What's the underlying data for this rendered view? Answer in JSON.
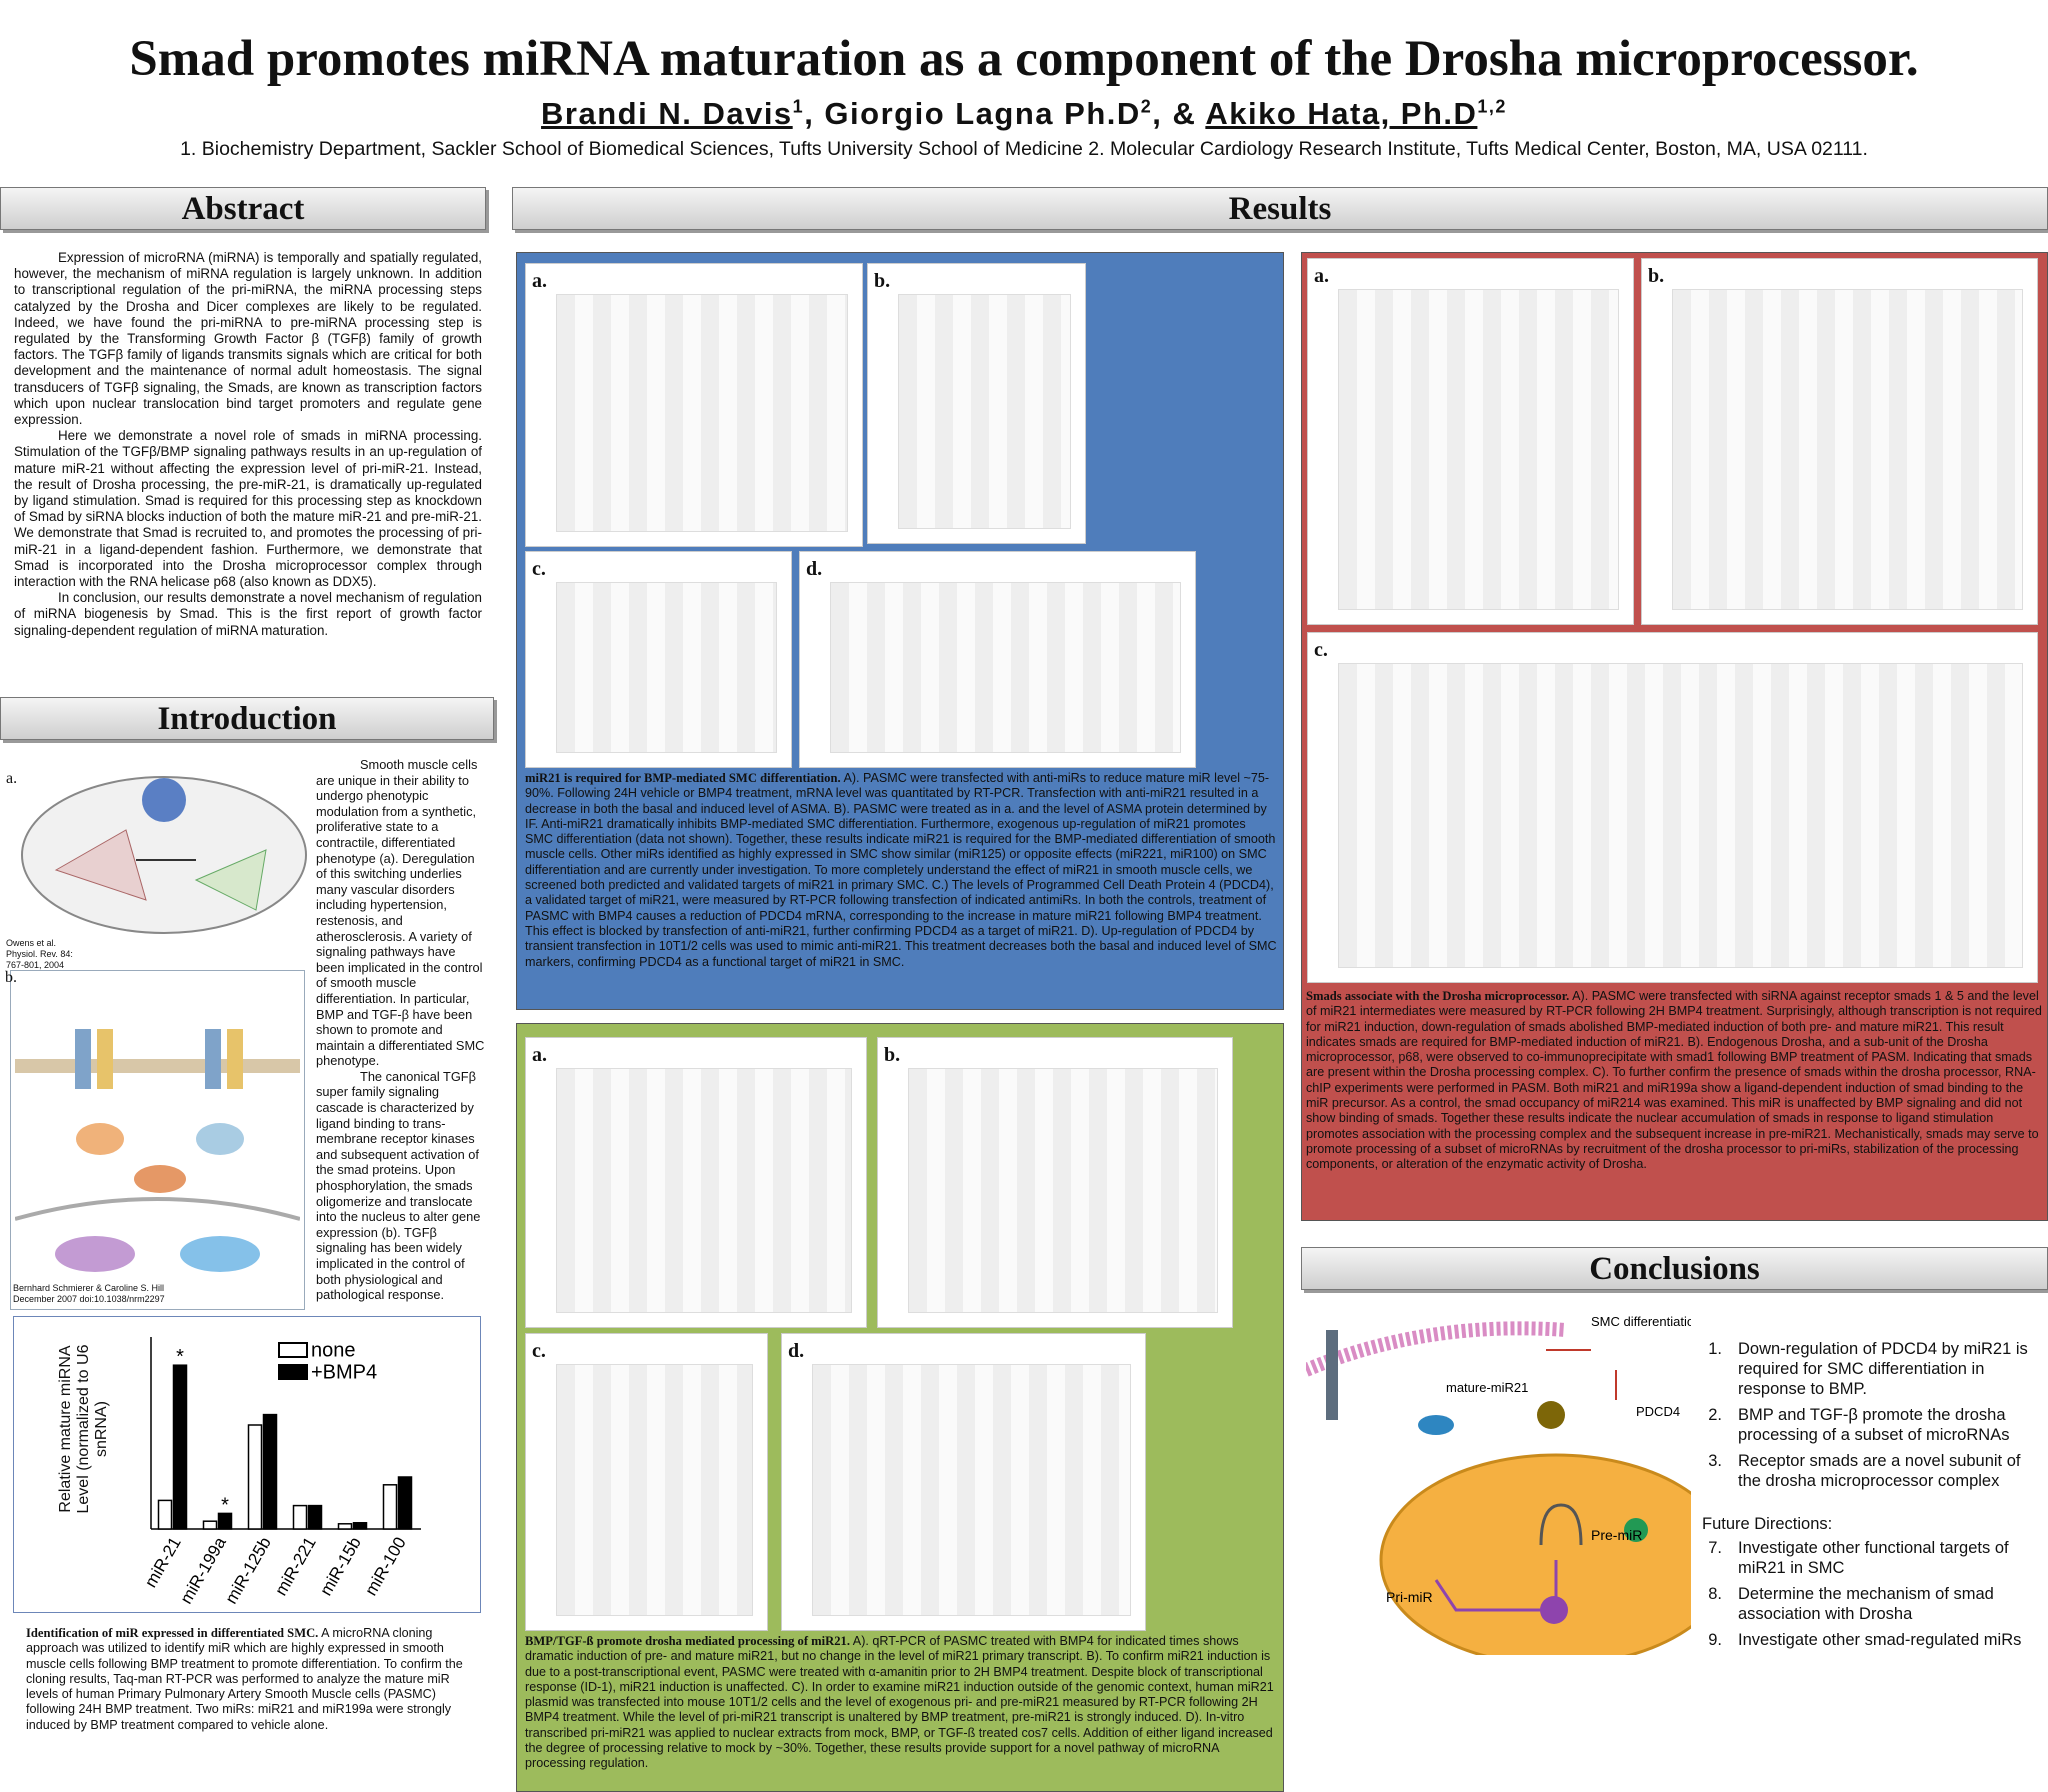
{
  "header": {
    "title": "Smad promotes miRNA maturation as a component of the Drosha microprocessor.",
    "authors": [
      {
        "name": "Brandi N. Davis",
        "sup": "1"
      },
      {
        "name": "Giorgio Lagna Ph.D",
        "sup": "2"
      },
      {
        "name": "Akiko Hata, Ph.D",
        "sup": "1,2"
      }
    ],
    "separators": [
      ", ",
      ", & "
    ],
    "affiliations": "1. Biochemistry Department, Sackler School of Biomedical Sciences, Tufts University School of Medicine  2. Molecular Cardiology Research Institute, Tufts Medical Center, Boston, MA, USA 02111."
  },
  "abstract": {
    "heading": "Abstract",
    "paragraphs": [
      "Expression of microRNA (miRNA) is temporally and spatially regulated, however, the mechanism of miRNA regulation is largely unknown.  In addition to transcriptional regulation of the pri-miRNA, the miRNA processing steps catalyzed by the Drosha and Dicer complexes are likely to be regulated.  Indeed, we have found the pri-miRNA to pre-miRNA processing step is regulated by the Transforming Growth Factor β (TGFβ) family of growth factors.  The TGFβ family of ligands transmits signals which are critical for both development and the maintenance of normal adult homeostasis.  The signal transducers of TGFβ signaling, the Smads, are known as transcription factors which upon nuclear translocation bind target promoters and regulate gene expression.",
      "Here we demonstrate a novel role of smads in miRNA processing. Stimulation of the TGFβ/BMP signaling pathways results in an up-regulation of mature miR-21 without affecting the expression level of pri-miR-21.  Instead, the result of Drosha processing, the pre-miR-21, is dramatically up-regulated by ligand stimulation.  Smad is required for this processing step as knockdown of Smad by siRNA blocks induction of both the mature miR-21 and pre-miR-21.  We demonstrate that Smad is recruited to, and promotes the processing of pri-miR-21 in a ligand-dependent fashion.  Furthermore, we demonstrate that Smad is incorporated into the Drosha microprocessor complex through interaction with the RNA helicase p68 (also known as DDX5).",
      "In conclusion, our results demonstrate a novel mechanism of regulation of miRNA biogenesis by Smad. This is the first report of growth factor signaling-dependent regulation of miRNA maturation."
    ]
  },
  "introduction": {
    "heading": "Introduction",
    "figure_a": {
      "label": "a.",
      "credit": "Owens et al. Physiol. Rev. 84: 767-801, 2004"
    },
    "figure_b": {
      "label": "b.",
      "credit": "Bernhard Schmierer & Caroline S. Hill December 2007 doi:10.1038/nrm2297"
    },
    "paragraphs": [
      "Smooth muscle cells are unique in their ability to undergo phenotypic modulation from a synthetic, proliferative state to a contractile, differentiated phenotype (a).  Deregulation of this switching underlies many vascular disorders including hypertension, restenosis, and atherosclerosis.  A variety of signaling pathways have been implicated in the control of smooth muscle differentiation.  In particular, BMP and TGF-β have been shown to promote and maintain a differentiated SMC phenotype.",
      "The canonical TGFβ super family signaling cascade is characterized by ligand binding to trans-membrane receptor kinases and subsequent activation of the smad proteins.  Upon phosphorylation, the smads oligomerize and translocate into the nucleus to alter gene expression (b).  TGFβ signaling has been widely implicated in the control of both physiological and pathological response."
    ],
    "caption_lead": "Identification of miR expressed in differentiated SMC.",
    "caption": "A microRNA cloning approach was utilized to identify miR which are highly expressed in smooth muscle cells following BMP treatment to promote differentiation.  To confirm the cloning results, Taq-man RT-PCR was performed to analyze the mature miR levels of human Primary Pulmonary Artery Smooth Muscle cells (PASMC) following 24H BMP treatment.  Two miRs: miR21 and miR199a were strongly induced by BMP treatment compared to vehicle alone."
  },
  "chart_data": {
    "type": "bar",
    "ylabel": "Relative mature miRNA Level (normalized to U6 snRNA)",
    "categories": [
      "miR-21",
      "miR-199a",
      "miR-125b",
      "miR-221",
      "miR-15b",
      "miR-100"
    ],
    "series": [
      {
        "name": "none",
        "color": "#ffffff",
        "values": [
          5.5,
          1.5,
          20,
          4.5,
          1,
          8.5
        ]
      },
      {
        "name": "+BMP4",
        "color": "#000000",
        "values": [
          31.5,
          3,
          22,
          4.5,
          1.2,
          10
        ]
      }
    ],
    "ylim": [
      0,
      35
    ],
    "legend": "upper right",
    "annotations": [
      {
        "text": "*",
        "category": "miR-21",
        "series": "+BMP4"
      },
      {
        "text": "*",
        "category": "miR-199a",
        "series": "+BMP4"
      }
    ]
  },
  "results": {
    "heading": "Results",
    "blue": {
      "figures": [
        "a.",
        "b.",
        "c.",
        "d."
      ],
      "caption_lead": "miR21 is required for BMP-mediated SMC differentiation.",
      "caption": "A). PASMC were transfected with anti-miRs to reduce mature miR level  ~75-90%.  Following 24H vehicle or BMP4 treatment, mRNA level was quantitated by RT-PCR.  Transfection with anti-miR21 resulted in a decrease in both the basal and induced level of ASMA.  B).  PASMC were treated as in a. and the level of ASMA protein determined by IF.  Anti-miR21 dramatically inhibits BMP-mediated SMC differentiation.  Furthermore, exogenous up-regulation of miR21 promotes SMC differentiation (data not shown).  Together, these results indicate miR21 is required for the BMP-mediated differentiation of smooth muscle cells. Other miRs identified as highly expressed in SMC show similar (miR125) or opposite effects (miR221, miR100) on SMC differentiation and are currently under investigation.  To more completely understand the effect of miR21 in smooth muscle cells, we screened both predicted and validated targets of miR21 in primary SMC.  C.)  The levels of Programmed Cell Death Protein 4 (PDCD4), a validated target of miR21,  were measured by RT-PCR following transfection of indicated antimiRs.  In both the controls, treatment of PASMC with BMP4 causes a reduction of PDCD4 mRNA, corresponding to the increase in mature miR21 following BMP4 treatment.  This effect is blocked by transfection of anti-miR21, further confirming PDCD4 as a target of miR21.  D).  Up-regulation of PDCD4 by transient transfection in 10T1/2 cells was used to mimic anti-miR21.  This treatment decreases both the basal and induced level of SMC markers, confirming  PDCD4 as a functional target of miR21 in SMC."
    },
    "green": {
      "figures": [
        "a.",
        "b.",
        "c.",
        "d."
      ],
      "caption_lead": "BMP/TGF-ß promote drosha mediated processing of miR21.",
      "caption": "A).   qRT-PCR of PASMC treated with BMP4 for indicated times shows dramatic induction of pre- and mature miR21, but no change in the level of miR21 primary transcript.  B).  To confirm miR21 induction is due to a post-transcriptional event, PASMC were treated with   α-amanitin prior to 2H BMP4 treatment.  Despite block of transcriptional response (ID-1), miR21 induction is unaffected.  C).  In order to examine miR21 induction outside of the genomic context, human miR21 plasmid was transfected into mouse 10T1/2 cells and the level of exogenous pri- and pre-miR21 measured by RT-PCR following 2H BMP4 treatment.  While the level of pri-miR21 transcript is unaltered by BMP treatment, pre-miR21 is strongly induced.  D).  In-vitro transcribed pri-miR21 was applied to nuclear extracts from mock, BMP, or TGF-ß treated cos7 cells.  Addition of either ligand increased the degree of processing relative to mock by ~30%.  Together, these results provide support for a novel pathway of microRNA processing regulation."
    },
    "red": {
      "figures": [
        "a.",
        "b.",
        "c."
      ],
      "caption_lead": "Smads associate with the Drosha microprocessor.",
      "caption": "A). PASMC were transfected with siRNA against receptor smads 1 & 5 and the level of miR21 intermediates were measured by RT-PCR following 2H BMP4 treatment.  Surprisingly, although transcription is not required for miR21 induction, down-regulation of smads abolished BMP-mediated induction of both pre- and mature miR21.  This result indicates smads are required for BMP-mediated induction of miR21.  B).  Endogenous Drosha, and a sub-unit of the Drosha microprocessor, p68, were observed to co-immunoprecipitate with smad1 following BMP treatment of PASM.  Indicating that smads are present within the Drosha processing complex.  C).  To further confirm the presence of smads within the drosha processor, RNA-chIP experiments were performed in PASM.  Both miR21 and miR199a show a ligand-dependent induction of smad binding to the miR precursor.  As a control, the smad occupancy of miR214 was examined.  This miR is unaffected by BMP signaling and did not show binding of smads. Together these results indicate the nuclear accumulation of smads in response to ligand stimulation promotes association with the processing complex and the subsequent increase in pre-miR21.  Mechanistically,  smads may serve to promote processing of a subset of microRNAs by recruitment of the drosha processor to pri-miRs, stabilization of the processing components, or alteration of the enzymatic activity of Drosha."
    }
  },
  "conclusions": {
    "heading": "Conclusions",
    "figure": {
      "smc": "SMC differentiation",
      "mature": "mature-miR21",
      "pdcd4": "PDCD4",
      "pre": "Pre-miR",
      "pri": "Pri-miR"
    },
    "items": [
      {
        "num": "1.",
        "text": "Down-regulation of PDCD4 by miR21 is required for SMC differentiation in response to BMP."
      },
      {
        "num": "2.",
        "text": "BMP and TGF-β promote the drosha processing of a subset of microRNAs"
      },
      {
        "num": "3.",
        "text": "Receptor smads are a novel subunit of the drosha microprocessor complex"
      }
    ],
    "future_heading": "Future Directions:",
    "future_items": [
      {
        "num": "7.",
        "text": "Investigate other functional targets of miR21 in SMC"
      },
      {
        "num": "8.",
        "text": "Determine the mechanism of smad association with Drosha"
      },
      {
        "num": "9.",
        "text": "Investigate other smad-regulated miRs"
      }
    ]
  }
}
